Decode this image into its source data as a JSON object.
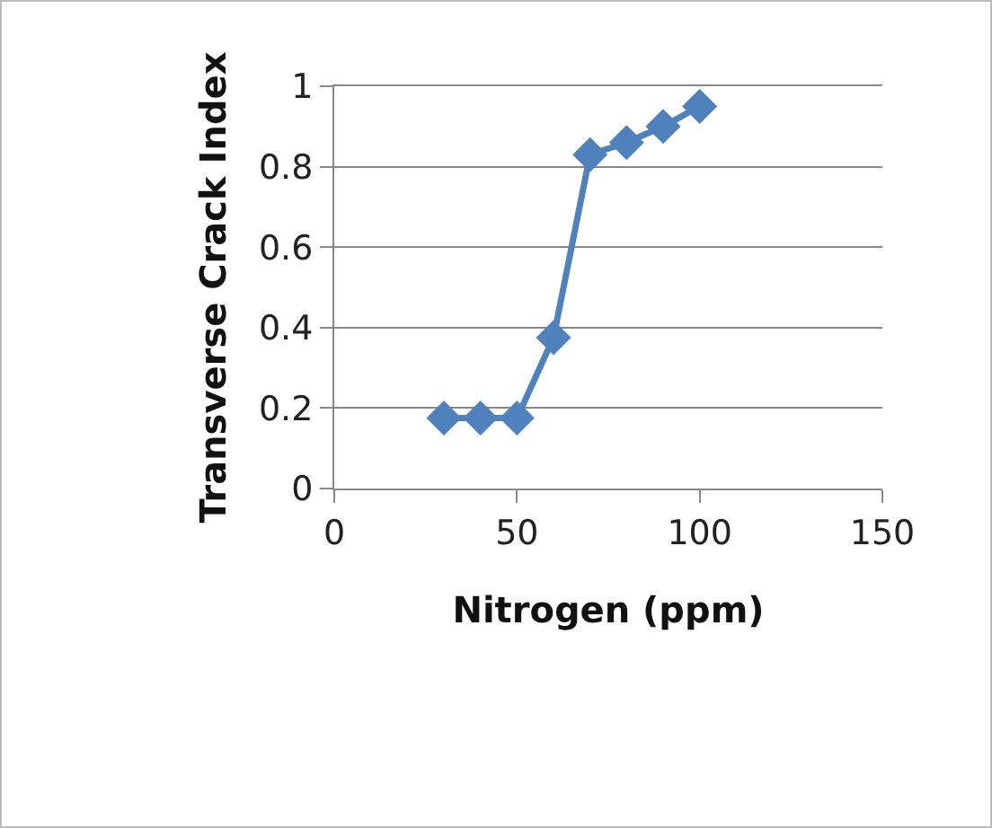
{
  "chart_data": {
    "type": "line",
    "xlabel": "Nitrogen (ppm)",
    "ylabel": "Transverse Crack Index",
    "x": [
      30,
      40,
      50,
      60,
      70,
      80,
      90,
      100
    ],
    "series": [
      {
        "color": "#4f81bd",
        "values": [
          0.175,
          0.175,
          0.175,
          0.375,
          0.83,
          0.86,
          0.9,
          0.95
        ]
      }
    ],
    "xlim": [
      0,
      150
    ],
    "xticks": [
      0,
      50,
      100,
      150
    ],
    "ylim": [
      0,
      1
    ],
    "yticks": [
      0,
      0.2,
      0.4,
      0.6,
      0.8,
      1
    ],
    "grid": "y",
    "marker": "diamond",
    "line_style": "solid"
  }
}
